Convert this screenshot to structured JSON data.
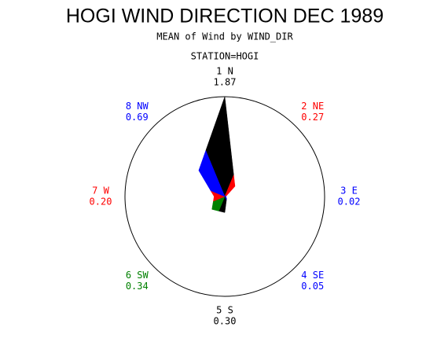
{
  "chart_data": {
    "type": "star",
    "title": "HOGI WIND DIRECTION DEC 1989",
    "subtitle": "MEAN of Wind by WIND_DIR",
    "by_label": "STATION=HOGI",
    "categories": [
      "1 N",
      "2 NE",
      "3 E",
      "4 SE",
      "5 S",
      "6 SW",
      "7 W",
      "8 NW"
    ],
    "values": [
      1.87,
      0.27,
      0.02,
      0.05,
      0.3,
      0.34,
      0.2,
      0.69
    ],
    "value_labels": [
      "1.87",
      "0.27",
      "0.02",
      "0.05",
      "0.30",
      "0.34",
      "0.20",
      "0.69"
    ],
    "colors": [
      "#000000",
      "#ff0000",
      "#0000ff",
      "#0000ff",
      "#000000",
      "#008000",
      "#ff0000",
      "#0000ff"
    ],
    "rlim": [
      0,
      1.87
    ]
  }
}
